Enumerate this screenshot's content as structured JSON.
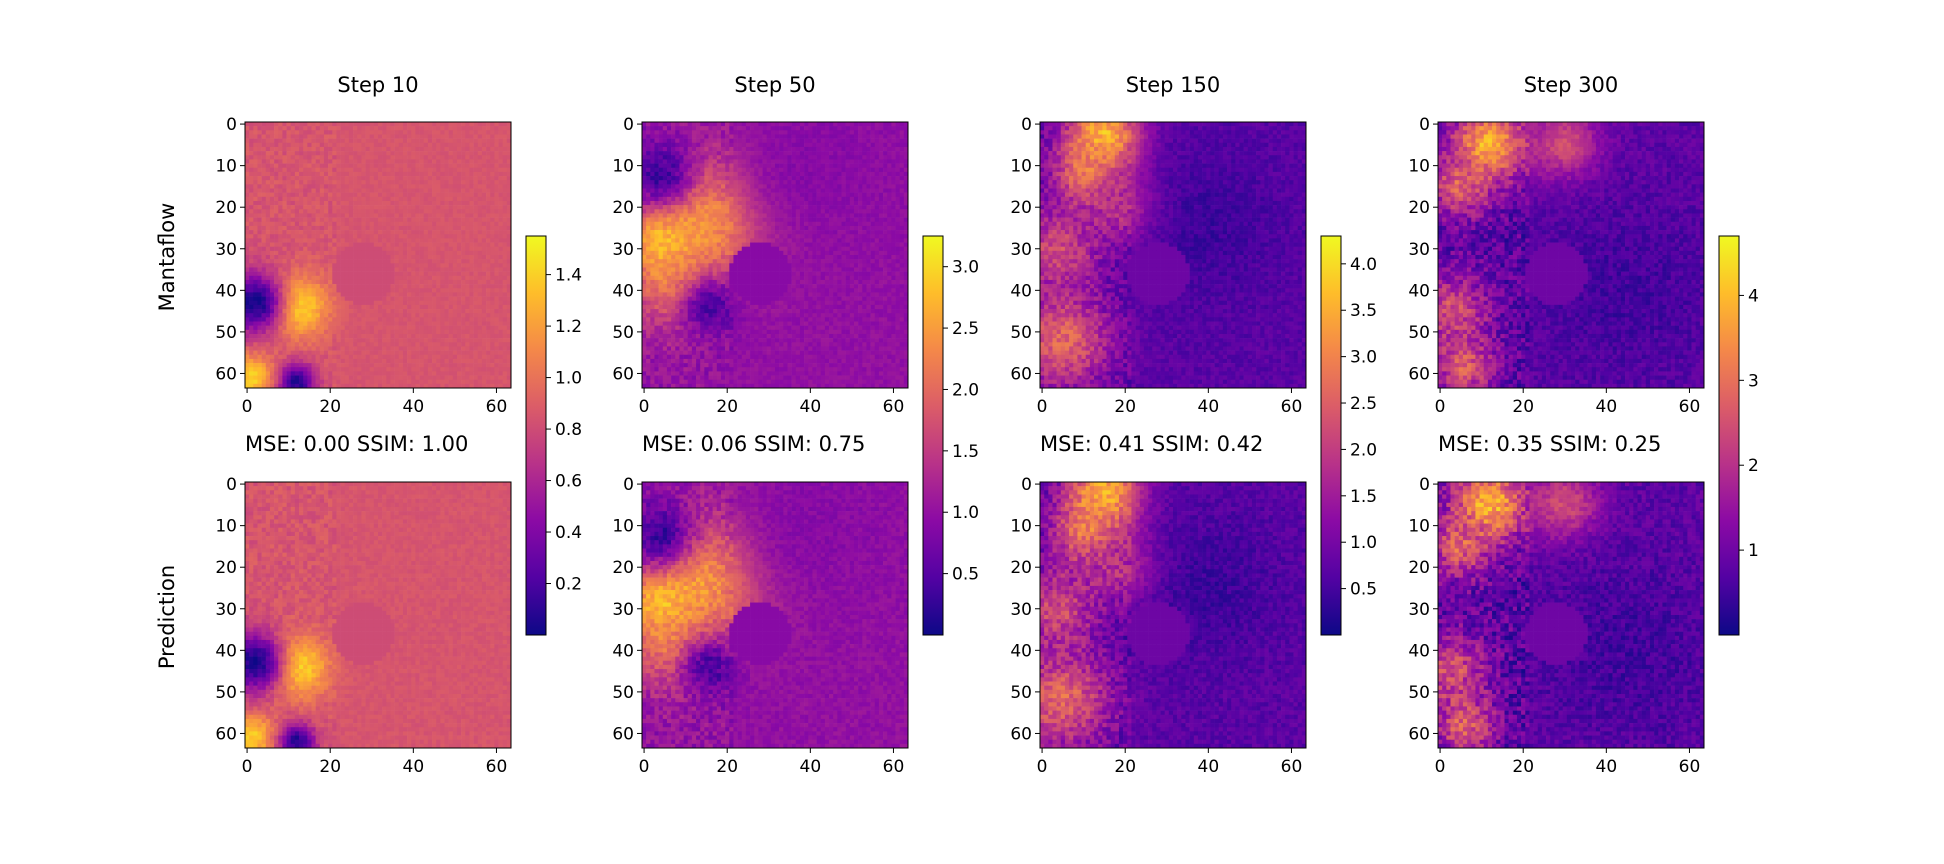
{
  "figure": {
    "row_labels": [
      "Mantaflow",
      "Prediction"
    ],
    "colormap": [
      "#0d0887",
      "#5302a3",
      "#8b0aa5",
      "#b83289",
      "#db5c68",
      "#f48849",
      "#febd2a",
      "#f0f921"
    ]
  },
  "chart_data": [
    {
      "type": "heatmap",
      "title": "Step 10",
      "metrics_text": "MSE: 0.00    SSIM: 1.00",
      "mse": 0.0,
      "ssim": 1.0,
      "grid_size": 64,
      "xticks": [
        "0",
        "20",
        "40",
        "60"
      ],
      "yticks": [
        "0",
        "10",
        "20",
        "30",
        "40",
        "50",
        "60"
      ],
      "colorbar": {
        "min": 0.0,
        "max": 1.55,
        "ticks": [
          0.2,
          0.4,
          0.6,
          0.8,
          1.0,
          1.2,
          1.4
        ],
        "tick_labels": [
          "0.2",
          "0.4",
          "0.6",
          "0.8",
          "1.0",
          "1.2",
          "1.4"
        ]
      },
      "background": 0.85,
      "obstacle": {
        "x": 28,
        "y": 36,
        "r": 7.5,
        "v": 0.8
      },
      "features": [
        {
          "x": 12,
          "y": 44,
          "r": 5,
          "v": 1.5
        },
        {
          "x": 1,
          "y": 61,
          "r": 4,
          "v": 1.4
        },
        {
          "x": 2,
          "y": 43,
          "r": 5,
          "v": 0.02
        },
        {
          "x": 12,
          "y": 62,
          "r": 3,
          "v": 0.05
        }
      ]
    },
    {
      "type": "heatmap",
      "title": "Step 50",
      "metrics_text": "MSE: 0.06    SSIM: 0.75",
      "mse": 0.06,
      "ssim": 0.75,
      "grid_size": 64,
      "xticks": [
        "0",
        "20",
        "40",
        "60"
      ],
      "yticks": [
        "0",
        "10",
        "20",
        "30",
        "40",
        "50",
        "60"
      ],
      "colorbar": {
        "min": 0.0,
        "max": 3.25,
        "ticks": [
          0.5,
          1.0,
          1.5,
          2.0,
          2.5,
          3.0
        ],
        "tick_labels": [
          "0.5",
          "1.0",
          "1.5",
          "2.0",
          "2.5",
          "3.0"
        ]
      },
      "background": 1.0,
      "obstacle": {
        "x": 28,
        "y": 36,
        "r": 7.5,
        "v": 0.9
      },
      "features": [
        {
          "x": 15,
          "y": 22,
          "r": 10,
          "v": 2.7
        },
        {
          "x": 5,
          "y": 28,
          "r": 6,
          "v": 3.0
        },
        {
          "x": 10,
          "y": 38,
          "r": 8,
          "v": 2.6
        },
        {
          "x": 4,
          "y": 12,
          "r": 6,
          "v": 0.3
        },
        {
          "x": 16,
          "y": 44,
          "r": 6,
          "v": 0.4
        },
        {
          "x": 40,
          "y": 10,
          "r": 14,
          "v": 0.9
        }
      ]
    },
    {
      "type": "heatmap",
      "title": "Step 150",
      "metrics_text": "MSE: 0.41    SSIM: 0.42",
      "mse": 0.41,
      "ssim": 0.42,
      "grid_size": 64,
      "xticks": [
        "0",
        "20",
        "40",
        "60"
      ],
      "yticks": [
        "0",
        "10",
        "20",
        "30",
        "40",
        "50",
        "60"
      ],
      "colorbar": {
        "min": 0.0,
        "max": 4.3,
        "ticks": [
          0.5,
          1.0,
          1.5,
          2.0,
          2.5,
          3.0,
          3.5,
          4.0
        ],
        "tick_labels": [
          "0.5",
          "1.0",
          "1.5",
          "2.0",
          "2.5",
          "3.0",
          "3.5",
          "4.0"
        ]
      },
      "background": 0.7,
      "obstacle": {
        "x": 28,
        "y": 36,
        "r": 7.5,
        "v": 0.9
      },
      "features": [
        {
          "x": 15,
          "y": 3,
          "r": 6,
          "v": 3.8
        },
        {
          "x": 12,
          "y": 12,
          "r": 6,
          "v": 3.2
        },
        {
          "x": 4,
          "y": 30,
          "r": 7,
          "v": 2.2
        },
        {
          "x": 5,
          "y": 52,
          "r": 8,
          "v": 2.6
        },
        {
          "x": 40,
          "y": 25,
          "r": 12,
          "v": 0.4
        },
        {
          "x": 18,
          "y": 20,
          "r": 6,
          "v": 1.8
        }
      ]
    },
    {
      "type": "heatmap",
      "title": "Step 300",
      "metrics_text": "MSE: 0.35    SSIM: 0.25",
      "mse": 0.35,
      "ssim": 0.25,
      "grid_size": 64,
      "xticks": [
        "0",
        "20",
        "40",
        "60"
      ],
      "yticks": [
        "0",
        "10",
        "20",
        "30",
        "40",
        "50",
        "60"
      ],
      "colorbar": {
        "min": 0.0,
        "max": 4.7,
        "ticks": [
          1,
          2,
          3,
          4
        ],
        "tick_labels": [
          "1",
          "2",
          "3",
          "4"
        ]
      },
      "background": 0.8,
      "obstacle": {
        "x": 28,
        "y": 36,
        "r": 7.5,
        "v": 1.0
      },
      "features": [
        {
          "x": 12,
          "y": 5,
          "r": 6,
          "v": 4.0
        },
        {
          "x": 5,
          "y": 15,
          "r": 5,
          "v": 2.8
        },
        {
          "x": 3,
          "y": 45,
          "r": 6,
          "v": 2.5
        },
        {
          "x": 6,
          "y": 58,
          "r": 5,
          "v": 2.7
        },
        {
          "x": 30,
          "y": 5,
          "r": 6,
          "v": 2.5
        },
        {
          "x": 45,
          "y": 40,
          "r": 15,
          "v": 0.5
        }
      ]
    }
  ]
}
